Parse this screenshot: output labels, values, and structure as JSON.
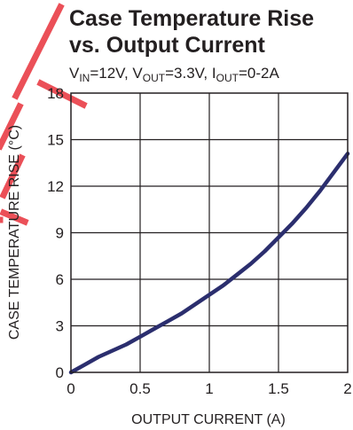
{
  "chart_data": {
    "type": "line",
    "title_line1": "Case Temperature Rise",
    "title_line2": "vs. Output Current",
    "subtitle": {
      "v": "V",
      "in": "IN",
      "in_val": "=12V, ",
      "v2": "V",
      "out": "OUT",
      "out_val": "=3.3V, ",
      "i": "I",
      "iout": "OUT",
      "iout_val": "=0-2A"
    },
    "xlabel": "OUTPUT CURRENT (A)",
    "ylabel": "CASE TEMPERATURE RISE (°C)",
    "xlim": [
      0,
      2
    ],
    "ylim": [
      0,
      18
    ],
    "x_ticks": [
      0,
      0.5,
      1,
      1.5,
      2
    ],
    "x_tick_labels": [
      "0",
      "0.5",
      "1",
      "1.5",
      "2"
    ],
    "y_ticks": [
      0,
      3,
      6,
      9,
      12,
      15,
      18
    ],
    "y_tick_labels": [
      "0",
      "3",
      "6",
      "9",
      "12",
      "15",
      "18"
    ],
    "grid": true,
    "series": [
      {
        "color": "#2b2e6e",
        "x": [
          0,
          0.1,
          0.2,
          0.3,
          0.4,
          0.5,
          0.6,
          0.7,
          0.8,
          0.9,
          1.0,
          1.1,
          1.2,
          1.3,
          1.4,
          1.5,
          1.6,
          1.7,
          1.8,
          1.9,
          2.0
        ],
        "y": [
          0,
          0.5,
          1.0,
          1.4,
          1.8,
          2.3,
          2.8,
          3.3,
          3.8,
          4.4,
          5.0,
          5.6,
          6.3,
          7.0,
          7.8,
          8.7,
          9.6,
          10.6,
          11.7,
          12.9,
          14.1
        ]
      }
    ],
    "watermark_color": "#e8323b"
  }
}
